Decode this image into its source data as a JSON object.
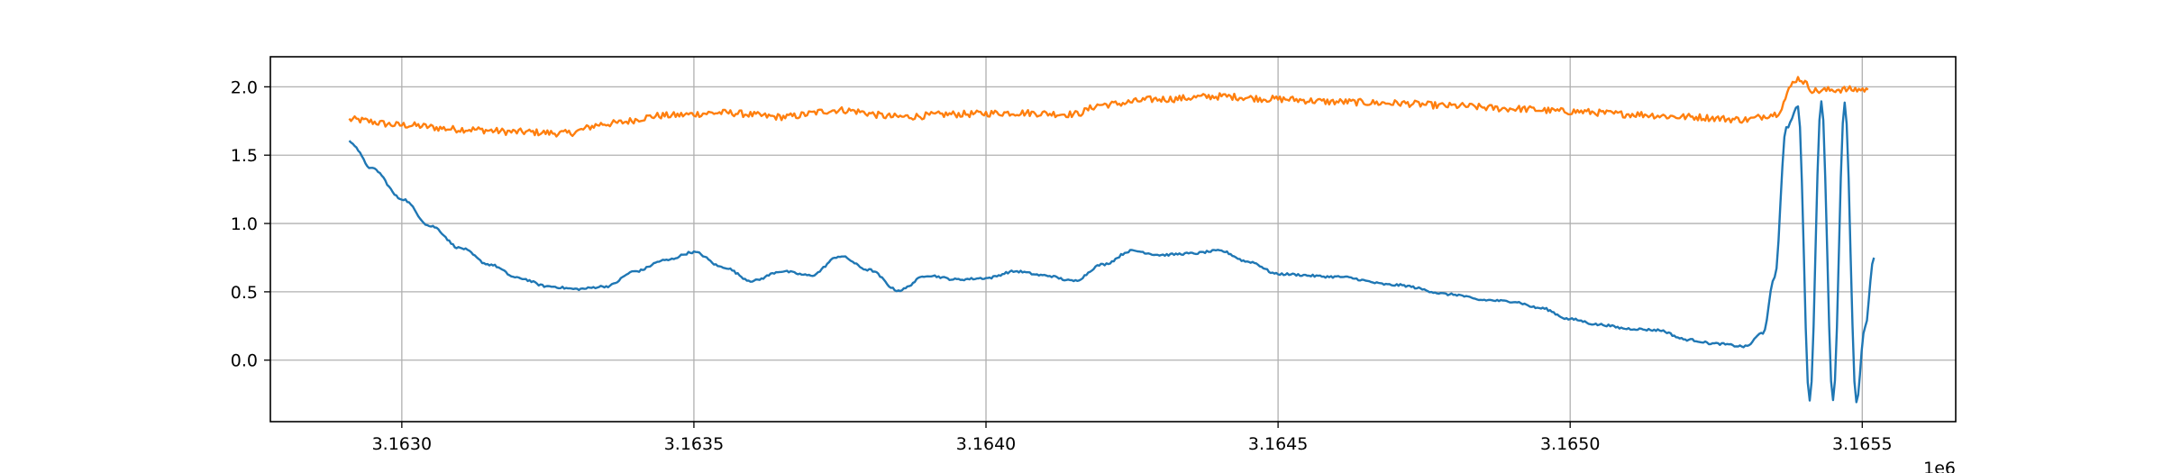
{
  "chart_data": {
    "type": "line",
    "title": "",
    "xlabel": "",
    "ylabel": "",
    "x_offset_label": "1e6",
    "xlim": [
      3162775,
      3165660
    ],
    "ylim": [
      -0.45,
      2.22
    ],
    "x_ticks": [
      3163000,
      3163500,
      3164000,
      3164500,
      3165000,
      3165500
    ],
    "x_tick_labels": [
      "3.1630",
      "3.1635",
      "3.1640",
      "3.1645",
      "3.1650",
      "3.1655"
    ],
    "y_ticks": [
      0.0,
      0.5,
      1.0,
      1.5,
      2.0
    ],
    "y_tick_labels": [
      "0.0",
      "0.5",
      "1.0",
      "1.5",
      "2.0"
    ],
    "grid": true,
    "legend": "none",
    "series": [
      {
        "color": "#ff7f0e",
        "noise": 0.025,
        "x": [
          3162910,
          3163000,
          3163100,
          3163200,
          3163280,
          3163350,
          3163450,
          3163550,
          3163650,
          3163750,
          3163850,
          3163950,
          3164050,
          3164150,
          3164200,
          3164300,
          3164400,
          3164500,
          3164600,
          3164700,
          3164800,
          3164900,
          3165000,
          3165100,
          3165200,
          3165300,
          3165350,
          3165390,
          3165420,
          3165460,
          3165510
        ],
        "y": [
          1.76,
          1.72,
          1.69,
          1.67,
          1.66,
          1.73,
          1.79,
          1.81,
          1.78,
          1.83,
          1.78,
          1.8,
          1.81,
          1.8,
          1.87,
          1.91,
          1.93,
          1.91,
          1.89,
          1.88,
          1.86,
          1.84,
          1.82,
          1.8,
          1.78,
          1.76,
          1.8,
          2.06,
          1.97,
          1.98,
          1.98
        ]
      },
      {
        "color": "#1f77b4",
        "noise": 0.008,
        "x": [
          3162910,
          3162950,
          3163000,
          3163050,
          3163100,
          3163150,
          3163200,
          3163250,
          3163300,
          3163350,
          3163400,
          3163450,
          3163500,
          3163550,
          3163600,
          3163650,
          3163700,
          3163750,
          3163800,
          3163850,
          3163900,
          3163950,
          3164000,
          3164050,
          3164100,
          3164150,
          3164200,
          3164250,
          3164300,
          3164350,
          3164400,
          3164450,
          3164500,
          3164600,
          3164700,
          3164800,
          3164850,
          3164900,
          3164950,
          3165000,
          3165050,
          3165100,
          3165150,
          3165200,
          3165250,
          3165300,
          3165330,
          3165350,
          3165370,
          3165390,
          3165410,
          3165430,
          3165450,
          3165470,
          3165490,
          3165505,
          3165520
        ],
        "y": [
          1.6,
          1.4,
          1.18,
          0.98,
          0.82,
          0.7,
          0.6,
          0.54,
          0.52,
          0.54,
          0.65,
          0.73,
          0.79,
          0.68,
          0.58,
          0.65,
          0.62,
          0.76,
          0.66,
          0.51,
          0.62,
          0.59,
          0.6,
          0.65,
          0.62,
          0.58,
          0.7,
          0.8,
          0.77,
          0.78,
          0.8,
          0.72,
          0.63,
          0.61,
          0.55,
          0.48,
          0.44,
          0.43,
          0.38,
          0.3,
          0.26,
          0.23,
          0.22,
          0.15,
          0.12,
          0.1,
          0.2,
          0.6,
          1.7,
          1.85,
          -0.3,
          1.9,
          -0.3,
          1.88,
          -0.3,
          0.25,
          0.75
        ]
      }
    ]
  }
}
